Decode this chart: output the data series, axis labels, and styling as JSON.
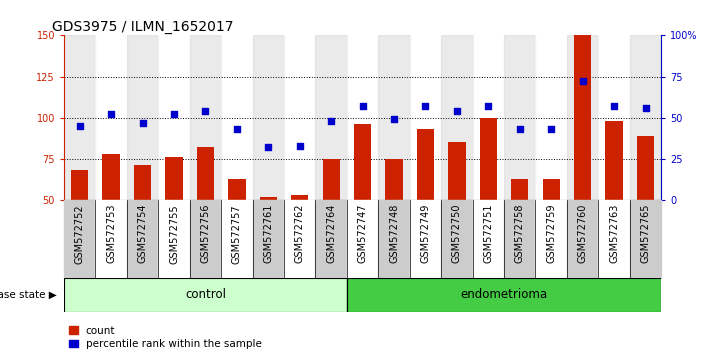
{
  "title": "GDS3975 / ILMN_1652017",
  "samples": [
    "GSM572752",
    "GSM572753",
    "GSM572754",
    "GSM572755",
    "GSM572756",
    "GSM572757",
    "GSM572761",
    "GSM572762",
    "GSM572764",
    "GSM572747",
    "GSM572748",
    "GSM572749",
    "GSM572750",
    "GSM572751",
    "GSM572758",
    "GSM572759",
    "GSM572760",
    "GSM572763",
    "GSM572765"
  ],
  "counts": [
    68,
    78,
    71,
    76,
    82,
    63,
    52,
    53,
    75,
    96,
    75,
    93,
    85,
    100,
    63,
    63,
    150,
    98,
    89
  ],
  "percentiles": [
    45,
    52,
    47,
    52,
    54,
    43,
    32,
    33,
    48,
    57,
    49,
    57,
    54,
    57,
    43,
    43,
    72,
    57,
    56
  ],
  "n_control": 9,
  "n_endometrioma": 10,
  "control_label": "control",
  "endometrioma_label": "endometrioma",
  "disease_state_label": "disease state",
  "left_ylim": [
    50,
    150
  ],
  "right_ylim": [
    0,
    100
  ],
  "left_yticks": [
    50,
    75,
    100,
    125,
    150
  ],
  "right_yticks": [
    0,
    25,
    50,
    75,
    100
  ],
  "right_yticklabels": [
    "0",
    "25",
    "50",
    "75",
    "100%"
  ],
  "bar_color": "#cc2200",
  "scatter_color": "#0000cc",
  "control_bg_light": "#ccffcc",
  "control_bg_dark": "#44cc44",
  "endometrioma_bg": "#33cc33",
  "tick_bg_even": "#cccccc",
  "tick_bg_odd": "#dddddd",
  "legend_count": "count",
  "legend_pct": "percentile rank within the sample",
  "title_fontsize": 10,
  "tick_fontsize": 7,
  "legend_fontsize": 7.5
}
